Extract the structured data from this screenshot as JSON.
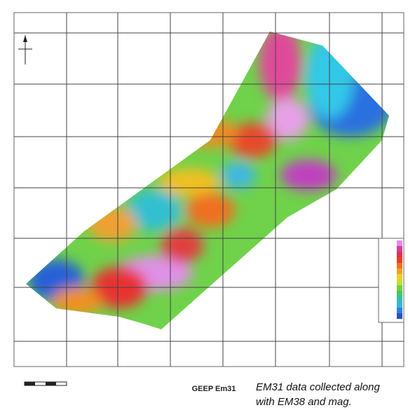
{
  "title": "GEEP Em31",
  "caption": [
    "EM31 data collected along",
    "with EM38 and mag."
  ]
}
